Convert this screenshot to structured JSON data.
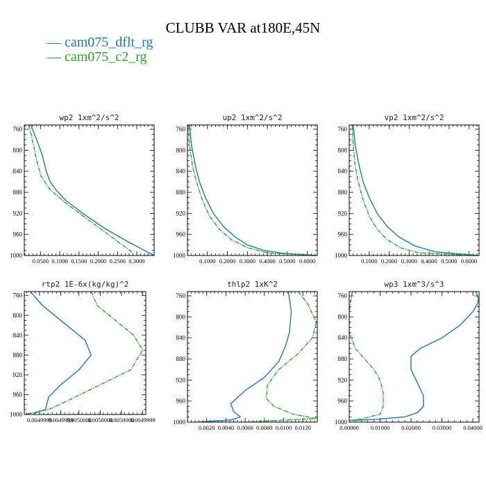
{
  "title": "CLUBB VAR at180E,45N",
  "colors": {
    "dflt": "#1f77b4",
    "c2": "#2ca02c"
  },
  "legend": [
    {
      "label": "cam075_dflt_rg",
      "color": "#1f77b4"
    },
    {
      "label": "cam075_c2_rg",
      "color": "#2ca02c"
    }
  ],
  "chart_data": [
    {
      "type": "line",
      "title": "wp2  1xm^2/s^2",
      "xlim": [
        0.008,
        0.345
      ],
      "ylim": [
        1000,
        752
      ],
      "y_ticks": [
        "760",
        "800",
        "840",
        "880",
        "920",
        "960",
        "1000"
      ],
      "x_ticks": [
        {
          "v": 0.05,
          "label": "0.0500"
        },
        {
          "v": 0.1,
          "label": "0.1000"
        },
        {
          "v": 0.15,
          "label": "0.1500"
        },
        {
          "v": 0.2,
          "label": "0.2000"
        },
        {
          "v": 0.25,
          "label": "0.2500"
        },
        {
          "v": 0.3,
          "label": "0.3000"
        }
      ],
      "series": [
        {
          "name": "cam075_dflt_rg",
          "style": "solid",
          "x": [
            0.025,
            0.04,
            0.055,
            0.065,
            0.075,
            0.09,
            0.115,
            0.16,
            0.22,
            0.28,
            0.345
          ],
          "y": [
            752,
            780,
            810,
            840,
            860,
            875,
            895,
            920,
            950,
            975,
            1000
          ]
        },
        {
          "name": "cam075_c2_rg",
          "style": "dashdot",
          "x": [
            0.02,
            0.032,
            0.04,
            0.052,
            0.075,
            0.115,
            0.17,
            0.235,
            0.29
          ],
          "y": [
            752,
            790,
            820,
            850,
            875,
            900,
            930,
            965,
            995
          ]
        }
      ]
    },
    {
      "type": "line",
      "title": "up2  1xm^2/s^2",
      "xlim": [
        0.0,
        0.65
      ],
      "ylim": [
        1000,
        752
      ],
      "y_ticks": [
        "760",
        "800",
        "840",
        "880",
        "920",
        "960",
        "1000"
      ],
      "x_ticks": [
        {
          "v": 0.1,
          "label": "0.1000"
        },
        {
          "v": 0.2,
          "label": "0.2000"
        },
        {
          "v": 0.3,
          "label": "0.3000"
        },
        {
          "v": 0.4,
          "label": "0.4000"
        },
        {
          "v": 0.5,
          "label": "0.5000"
        },
        {
          "v": 0.6,
          "label": "0.6000"
        }
      ],
      "series": [
        {
          "name": "cam075_dflt_rg",
          "style": "solid",
          "x": [
            0.01,
            0.02,
            0.04,
            0.06,
            0.09,
            0.13,
            0.18,
            0.24,
            0.3,
            0.38,
            0.48,
            0.65
          ],
          "y": [
            752,
            790,
            830,
            860,
            890,
            920,
            945,
            965,
            980,
            990,
            996,
            1000
          ]
        },
        {
          "name": "cam075_c2_rg",
          "style": "dashdot",
          "x": [
            0.005,
            0.01,
            0.025,
            0.045,
            0.075,
            0.11,
            0.16,
            0.22,
            0.3,
            0.4,
            0.65
          ],
          "y": [
            752,
            790,
            830,
            860,
            895,
            925,
            950,
            970,
            985,
            995,
            1000
          ]
        }
      ]
    },
    {
      "type": "line",
      "title": "vp2  1xm^2/s^2",
      "xlim": [
        0.0,
        0.65
      ],
      "ylim": [
        1000,
        752
      ],
      "y_ticks": [
        "760",
        "800",
        "840",
        "880",
        "920",
        "960",
        "1000"
      ],
      "x_ticks": [
        {
          "v": 0.1,
          "label": "0.1000"
        },
        {
          "v": 0.2,
          "label": "0.2000"
        },
        {
          "v": 0.3,
          "label": "0.3000"
        },
        {
          "v": 0.4,
          "label": "0.4000"
        },
        {
          "v": 0.5,
          "label": "0.5000"
        },
        {
          "v": 0.6,
          "label": "0.6000"
        }
      ],
      "series": [
        {
          "name": "cam075_dflt_rg",
          "style": "solid",
          "x": [
            0.02,
            0.03,
            0.05,
            0.07,
            0.1,
            0.14,
            0.19,
            0.25,
            0.33,
            0.43,
            0.65
          ],
          "y": [
            752,
            790,
            830,
            860,
            890,
            920,
            945,
            965,
            982,
            993,
            1000
          ]
        },
        {
          "name": "cam075_c2_rg",
          "style": "dashdot",
          "x": [
            0.015,
            0.02,
            0.03,
            0.045,
            0.07,
            0.1,
            0.14,
            0.19,
            0.26,
            0.35,
            0.65
          ],
          "y": [
            752,
            790,
            830,
            860,
            895,
            925,
            950,
            970,
            986,
            995,
            1000
          ]
        }
      ]
    },
    {
      "type": "line",
      "title": "rtp2  1E-6x(kg/kg)^2",
      "xlim": [
        0.00496,
        0.005
      ],
      "ylim": [
        1000,
        752
      ],
      "y_ticks": [
        "760",
        "800",
        "840",
        "880",
        "920",
        "960",
        "1000"
      ],
      "x_ticks": [
        {
          "v": 0.004965,
          "label": "0.0049999"
        },
        {
          "v": 0.004972,
          "label": "0.0049999"
        },
        {
          "v": 0.004978,
          "label": "0.0050000"
        },
        {
          "v": 0.004985,
          "label": "0.0050000"
        },
        {
          "v": 0.004992,
          "label": "0.0050000"
        },
        {
          "v": 0.004999,
          "label": "0.0049999"
        }
      ],
      "series": [
        {
          "name": "cam075_dflt_rg",
          "style": "solid",
          "x": [
            0.004962,
            0.004966,
            0.004972,
            0.00498,
            0.004982,
            0.004978,
            0.004972,
            0.004968,
            0.004967,
            0.004963
          ],
          "y": [
            752,
            780,
            810,
            850,
            880,
            910,
            940,
            965,
            990,
            998
          ]
        },
        {
          "name": "cam075_c2_rg",
          "style": "dashdot",
          "x": [
            0.004982,
            0.004984,
            0.00499,
            0.004996,
            0.004999,
            0.004995,
            0.004985,
            0.004975,
            0.004968,
            0.00496
          ],
          "y": [
            752,
            780,
            810,
            840,
            870,
            910,
            940,
            970,
            990,
            1000
          ]
        }
      ]
    },
    {
      "type": "line",
      "title": "thlp2  1xK^2",
      "xlim": [
        0.0,
        0.0135
      ],
      "ylim": [
        1000,
        752
      ],
      "y_ticks": [
        "760",
        "800",
        "840",
        "880",
        "920",
        "960",
        "1000"
      ],
      "x_ticks": [
        {
          "v": 0.002,
          "label": "0.0020"
        },
        {
          "v": 0.004,
          "label": "0.0040"
        },
        {
          "v": 0.006,
          "label": "0.0060"
        },
        {
          "v": 0.008,
          "label": "0.0080"
        },
        {
          "v": 0.01,
          "label": "0.0100"
        },
        {
          "v": 0.012,
          "label": "0.0120"
        }
      ],
      "series": [
        {
          "name": "cam075_dflt_rg",
          "style": "solid",
          "x": [
            0.0105,
            0.0108,
            0.0106,
            0.0102,
            0.0095,
            0.008,
            0.006,
            0.0045,
            0.0048,
            0.0055,
            0.0045,
            0.001
          ],
          "y": [
            752,
            790,
            830,
            855,
            885,
            915,
            940,
            965,
            980,
            990,
            996,
            1000
          ]
        },
        {
          "name": "cam075_c2_rg",
          "style": "dashdot",
          "x": [
            0.0115,
            0.0125,
            0.0134,
            0.013,
            0.0115,
            0.0095,
            0.0083,
            0.0082,
            0.009,
            0.011,
            0.0134,
            0.006
          ],
          "y": [
            752,
            775,
            810,
            840,
            870,
            900,
            930,
            955,
            970,
            985,
            993,
            1000
          ]
        }
      ]
    },
    {
      "type": "line",
      "title": "wp3  1xm^3/s^3",
      "xlim": [
        0.0,
        0.042
      ],
      "ylim": [
        1000,
        752
      ],
      "y_ticks": [
        "760",
        "800",
        "840",
        "880",
        "920",
        "960",
        "1000"
      ],
      "x_ticks": [
        {
          "v": 0.0,
          "label": "0.00000"
        },
        {
          "v": 0.01,
          "label": "0.01000"
        },
        {
          "v": 0.02,
          "label": "0.02000"
        },
        {
          "v": 0.03,
          "label": "0.03000"
        },
        {
          "v": 0.04,
          "label": "0.04000"
        }
      ],
      "series": [
        {
          "name": "cam075_dflt_rg",
          "style": "solid",
          "x": [
            0.041,
            0.042,
            0.04,
            0.036,
            0.03,
            0.023,
            0.02,
            0.02,
            0.022,
            0.024,
            0.024,
            0.022,
            0.018,
            0.008,
            0.0
          ],
          "y": [
            752,
            770,
            790,
            815,
            840,
            860,
            875,
            900,
            925,
            950,
            970,
            982,
            990,
            995,
            997
          ]
        },
        {
          "name": "cam075_c2_rg",
          "style": "dashdot",
          "x": [
            0.001,
            0.0,
            0.0,
            0.002,
            0.005,
            0.008,
            0.01,
            0.011,
            0.011,
            0.01,
            0.004,
            0.0
          ],
          "y": [
            752,
            790,
            830,
            860,
            880,
            900,
            920,
            945,
            970,
            985,
            994,
            997
          ]
        }
      ]
    }
  ]
}
